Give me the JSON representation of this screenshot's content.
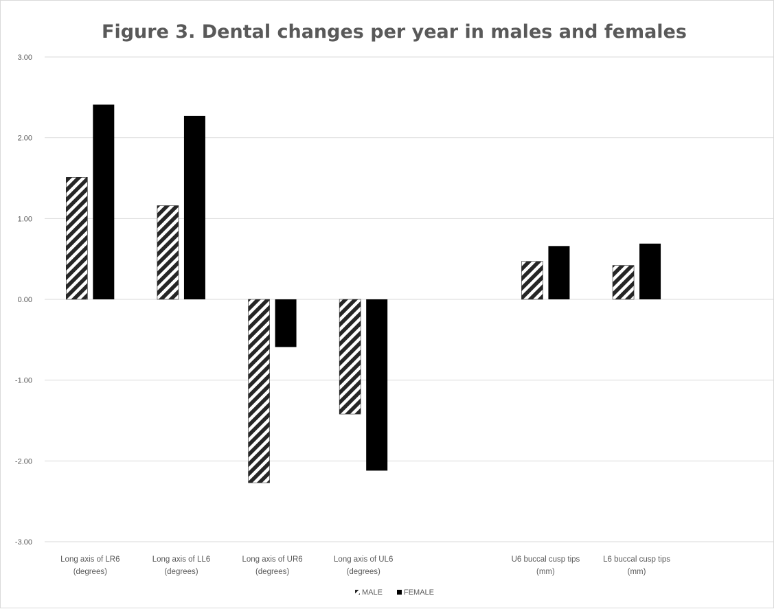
{
  "chart_data": {
    "type": "bar",
    "title": "Figure 3. Dental changes per year in males and females",
    "xlabel": "",
    "ylabel": "",
    "ylim": [
      -3,
      3
    ],
    "yticks": [
      "3.00",
      "2.00",
      "1.00",
      "0.00",
      "-1.00",
      "-2.00",
      "-3.00"
    ],
    "ytick_values": [
      3,
      2,
      1,
      0,
      -1,
      -2,
      -3
    ],
    "grid": true,
    "legend_position": "bottom",
    "categories": [
      [
        "Long axis of LR6",
        "(degrees)"
      ],
      [
        "Long axis of LL6",
        "(degrees)"
      ],
      [
        "Long axis of UR6",
        "(degrees)"
      ],
      [
        "Long axis of UL6",
        "(degrees)"
      ],
      [
        "",
        ""
      ],
      [
        "U6 buccal cusp tips",
        "(mm)"
      ],
      [
        "L6 buccal cusp tips",
        "(mm)"
      ],
      [
        "",
        ""
      ]
    ],
    "series": [
      {
        "name": "MALE",
        "pattern": "diagonal-hatch",
        "color": "#262626",
        "values": [
          1.51,
          1.16,
          -2.27,
          -1.42,
          null,
          0.47,
          0.42,
          null
        ]
      },
      {
        "name": "FEMALE",
        "pattern": "solid",
        "color": "#000000",
        "values": [
          2.41,
          2.27,
          -0.59,
          -2.12,
          null,
          0.66,
          0.69,
          null
        ]
      }
    ]
  }
}
